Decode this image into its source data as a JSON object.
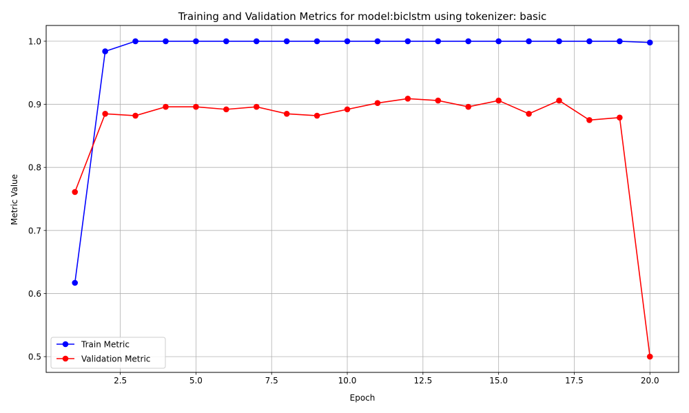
{
  "chart_data": {
    "type": "line",
    "title": "Training and Validation Metrics for model:biclstm using tokenizer: basic",
    "xlabel": "Epoch",
    "ylabel": "Metric Value",
    "xlim": [
      0.05,
      20.95
    ],
    "ylim": [
      0.475,
      1.025
    ],
    "xticks": [
      "2.5",
      "5.0",
      "7.5",
      "10.0",
      "12.5",
      "15.0",
      "17.5",
      "20.0"
    ],
    "xtick_values": [
      2.5,
      5.0,
      7.5,
      10.0,
      12.5,
      15.0,
      17.5,
      20.0
    ],
    "yticks": [
      "0.5",
      "0.6",
      "0.7",
      "0.8",
      "0.9",
      "1.0"
    ],
    "ytick_values": [
      0.5,
      0.6,
      0.7,
      0.8,
      0.9,
      1.0
    ],
    "grid": true,
    "legend_position": "lower-left",
    "x": [
      1,
      2,
      3,
      4,
      5,
      6,
      7,
      8,
      9,
      10,
      11,
      12,
      13,
      14,
      15,
      16,
      17,
      18,
      19,
      20
    ],
    "series": [
      {
        "name": "Train Metric",
        "color": "#0000ff",
        "values": [
          0.617,
          0.984,
          1.0,
          1.0,
          1.0,
          1.0,
          1.0,
          1.0,
          1.0,
          1.0,
          1.0,
          1.0,
          1.0,
          1.0,
          1.0,
          1.0,
          1.0,
          1.0,
          1.0,
          0.998
        ]
      },
      {
        "name": "Validation Metric",
        "color": "#ff0000",
        "values": [
          0.761,
          0.885,
          0.882,
          0.896,
          0.896,
          0.892,
          0.896,
          0.885,
          0.882,
          0.892,
          0.902,
          0.909,
          0.906,
          0.896,
          0.906,
          0.885,
          0.906,
          0.875,
          0.879,
          0.5
        ]
      }
    ]
  }
}
